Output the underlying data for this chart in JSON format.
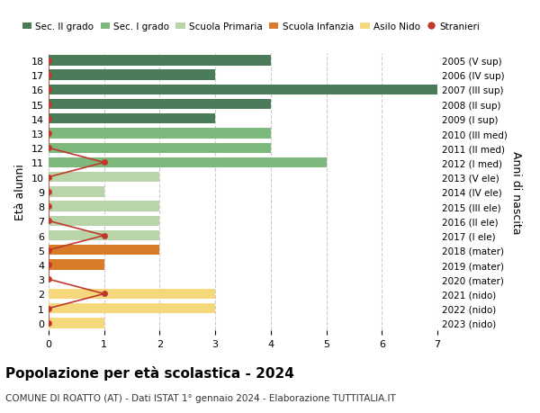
{
  "ages": [
    0,
    1,
    2,
    3,
    4,
    5,
    6,
    7,
    8,
    9,
    10,
    11,
    12,
    13,
    14,
    15,
    16,
    17,
    18
  ],
  "right_labels": [
    "2023 (nido)",
    "2022 (nido)",
    "2021 (nido)",
    "2020 (mater)",
    "2019 (mater)",
    "2018 (mater)",
    "2017 (I ele)",
    "2016 (II ele)",
    "2015 (III ele)",
    "2014 (IV ele)",
    "2013 (V ele)",
    "2012 (I med)",
    "2011 (II med)",
    "2010 (III med)",
    "2009 (I sup)",
    "2008 (II sup)",
    "2007 (III sup)",
    "2006 (IV sup)",
    "2005 (V sup)"
  ],
  "bar_values": [
    1,
    3,
    3,
    0,
    1,
    2,
    2,
    2,
    2,
    1,
    2,
    5,
    4,
    4,
    3,
    4,
    7,
    3,
    4
  ],
  "bar_colors": [
    "#f5d87c",
    "#f5d87c",
    "#f5d87c",
    "#d97c2a",
    "#d97c2a",
    "#d97c2a",
    "#b8d4a8",
    "#b8d4a8",
    "#b8d4a8",
    "#b8d4a8",
    "#b8d4a8",
    "#7db87d",
    "#7db87d",
    "#7db87d",
    "#4a7c59",
    "#4a7c59",
    "#4a7c59",
    "#4a7c59",
    "#4a7c59"
  ],
  "stranieri_x": [
    0,
    0,
    1,
    0,
    0,
    0,
    1,
    0,
    0,
    0,
    0,
    1,
    0,
    0,
    0,
    0,
    0,
    0,
    0
  ],
  "legend_labels": [
    "Sec. II grado",
    "Sec. I grado",
    "Scuola Primaria",
    "Scuola Infanzia",
    "Asilo Nido",
    "Stranieri"
  ],
  "legend_colors": [
    "#4a7c59",
    "#7db87d",
    "#b8d4a8",
    "#d97c2a",
    "#f5d87c",
    "#c0392b"
  ],
  "ylabel_left": "Età alunni",
  "ylabel_right": "Anni di nascita",
  "title": "Popolazione per età scolastica - 2024",
  "subtitle": "COMUNE DI ROATTO (AT) - Dati ISTAT 1° gennaio 2024 - Elaborazione TUTTITALIA.IT",
  "xlim": [
    0,
    7
  ],
  "ylim": [
    -0.5,
    18.5
  ],
  "bg_color": "#ffffff",
  "bar_height": 0.7,
  "stranieri_color": "#c0392b",
  "grid_color": "#cccccc"
}
